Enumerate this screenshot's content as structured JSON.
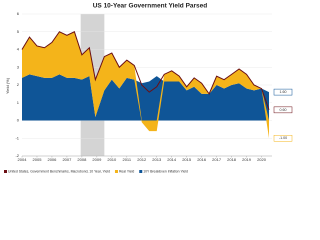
{
  "chart_data": {
    "type": "stacked-area-line",
    "title": "US 10-Year Government Yield Parsed",
    "y_label": "Yield (%)",
    "x": [
      2004,
      2004.5,
      2005,
      2005.5,
      2006,
      2006.5,
      2007,
      2007.5,
      2008,
      2008.5,
      2008.9,
      2009.5,
      2010,
      2010.5,
      2011,
      2011.5,
      2012,
      2012.5,
      2013,
      2013.5,
      2014,
      2014.5,
      2015,
      2015.5,
      2016,
      2016.5,
      2017,
      2017.5,
      2018,
      2018.5,
      2019,
      2019.5,
      2020,
      2020.5
    ],
    "series": [
      {
        "name": "United States, Government Benchmarks, Macrobond, 10 Year, Yield",
        "color": "#6b0f14",
        "kind": "line",
        "values": [
          4.0,
          4.7,
          4.2,
          4.1,
          4.4,
          5.0,
          4.8,
          5.0,
          3.7,
          4.1,
          2.3,
          3.6,
          3.8,
          3.0,
          3.4,
          3.1,
          2.0,
          1.6,
          1.9,
          2.6,
          2.8,
          2.5,
          1.9,
          2.4,
          2.1,
          1.5,
          2.5,
          2.3,
          2.6,
          2.9,
          2.6,
          2.0,
          1.8,
          0.6
        ],
        "value_labels": [
          "0.60"
        ]
      },
      {
        "name": "Real Yield",
        "color": "#f4b41a",
        "kind": "area",
        "values": [
          1.6,
          2.1,
          1.7,
          1.7,
          2.0,
          2.4,
          2.4,
          2.6,
          1.4,
          1.6,
          2.1,
          1.9,
          1.5,
          1.2,
          1.0,
          0.8,
          -0.1,
          -0.6,
          -0.6,
          0.4,
          0.6,
          0.3,
          0.2,
          0.5,
          0.6,
          0.0,
          0.5,
          0.5,
          0.6,
          0.8,
          0.8,
          0.3,
          0.0,
          -1.0
        ],
        "value_labels": [
          "-1.00"
        ]
      },
      {
        "name": "10Y BreakEven Inflation Yield",
        "color": "#0f5597",
        "kind": "area",
        "values": [
          2.4,
          2.6,
          2.5,
          2.4,
          2.4,
          2.6,
          2.4,
          2.4,
          2.3,
          2.5,
          0.2,
          1.7,
          2.3,
          1.8,
          2.4,
          2.3,
          2.1,
          2.2,
          2.5,
          2.2,
          2.2,
          2.2,
          1.7,
          1.9,
          1.5,
          1.5,
          2.0,
          1.8,
          2.0,
          2.1,
          1.8,
          1.7,
          1.8,
          1.6
        ],
        "value_labels": [
          "1.60"
        ]
      }
    ],
    "recession": [
      2007.92,
      2009.5
    ],
    "recession_color": "#d4d4d4",
    "xlim": [
      2004,
      2020.7
    ],
    "xticks": [
      2004,
      2005,
      2006,
      2007,
      2008,
      2009,
      2010,
      2011,
      2012,
      2013,
      2014,
      2015,
      2016,
      2017,
      2018,
      2019,
      2020
    ],
    "ylim": [
      -2,
      6
    ],
    "yticks": [
      -2,
      -1,
      0,
      1,
      2,
      3,
      4,
      5,
      6
    ],
    "grid": true
  }
}
